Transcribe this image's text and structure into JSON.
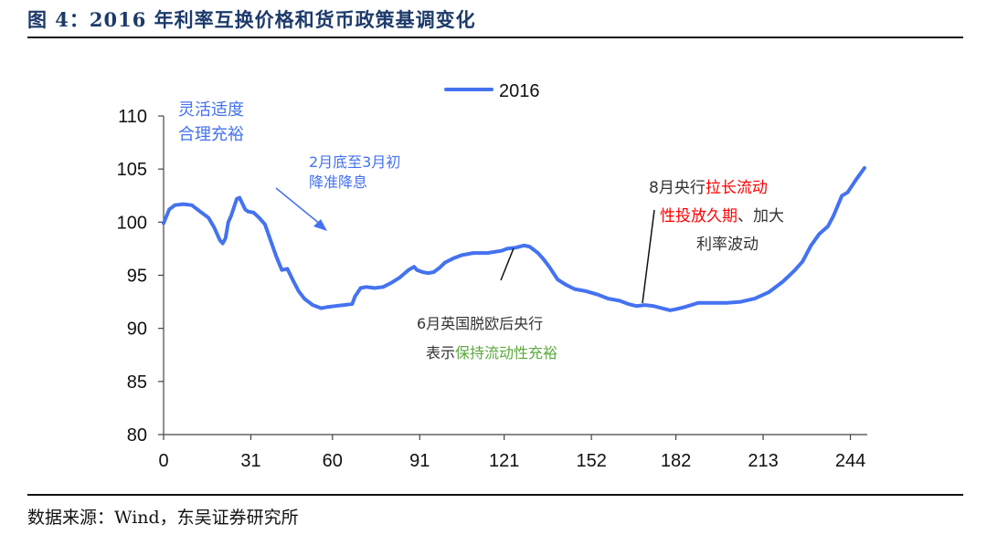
{
  "figure": {
    "title": "图 4：2016 年利率互换价格和货币政策基调变化",
    "source": "数据来源：Wind，东吴证券研究所"
  },
  "colors": {
    "line": "#4472F0",
    "annotation_blue": "#4472F0",
    "annotation_red": "#FF0000",
    "annotation_green": "#5AAA3C",
    "annotation_dark": "#333333",
    "title": "#1D3A6B"
  },
  "chart_data": {
    "type": "line",
    "title": "",
    "xlabel": "",
    "ylabel": "",
    "xlim": [
      0,
      250
    ],
    "ylim": [
      80,
      110
    ],
    "x_ticks": [
      0,
      31,
      60,
      91,
      121,
      152,
      182,
      213,
      244
    ],
    "y_ticks": [
      80,
      85,
      90,
      95,
      100,
      105,
      110
    ],
    "grid": false,
    "legend_position": "top-center",
    "series": [
      {
        "name": "2016",
        "x": [
          0,
          2,
          4,
          7,
          10,
          13,
          16,
          18,
          20,
          21,
          22,
          23,
          24,
          26,
          27,
          29,
          30,
          32,
          34,
          36,
          38,
          40,
          42,
          44,
          46,
          48,
          50,
          53,
          56,
          58,
          61,
          64,
          67,
          68,
          70,
          72,
          75,
          78,
          81,
          84,
          87,
          89,
          90,
          92,
          94,
          96,
          98,
          100,
          103,
          106,
          110,
          115,
          120,
          122,
          125,
          128,
          130,
          131,
          133,
          135,
          137,
          140,
          143,
          146,
          150,
          154,
          158,
          162,
          165,
          168,
          171,
          174,
          177,
          180,
          182,
          185,
          190,
          195,
          200,
          205,
          210,
          215,
          220,
          224,
          227,
          230,
          233,
          236,
          238,
          241,
          243,
          246,
          249
        ],
        "values": [
          99.9,
          101.2,
          101.6,
          101.7,
          101.6,
          101.0,
          100.4,
          99.5,
          98.3,
          98.0,
          98.5,
          100.0,
          100.6,
          102.2,
          102.3,
          101.2,
          101.0,
          100.9,
          100.4,
          99.8,
          98.3,
          96.8,
          95.5,
          95.6,
          94.5,
          93.5,
          92.8,
          92.2,
          91.9,
          92.0,
          92.1,
          92.2,
          92.3,
          93.0,
          93.8,
          93.9,
          93.8,
          93.9,
          94.3,
          94.8,
          95.5,
          95.8,
          95.5,
          95.3,
          95.2,
          95.3,
          95.7,
          96.2,
          96.6,
          96.9,
          97.1,
          97.1,
          97.3,
          97.5,
          97.6,
          97.8,
          97.7,
          97.5,
          97.1,
          96.5,
          95.8,
          94.6,
          94.1,
          93.7,
          93.5,
          93.2,
          92.8,
          92.6,
          92.3,
          92.1,
          92.2,
          92.1,
          91.9,
          91.7,
          91.8,
          92.0,
          92.4,
          92.4,
          92.4,
          92.5,
          92.8,
          93.4,
          94.4,
          95.4,
          96.3,
          97.8,
          98.9,
          99.6,
          100.6,
          102.5,
          102.8,
          104.0,
          105.1
        ]
      }
    ],
    "annotations": [
      {
        "lines": [
          "灵活适度",
          "合理充裕"
        ]
      },
      {
        "lines": [
          "2月底至3月初",
          "降准降息"
        ]
      },
      {
        "lines": [
          "8月央行",
          "拉长流动",
          "性投放久期",
          "、加大",
          "利率波动"
        ]
      },
      {
        "lines": [
          "6月英国脱欧后央行",
          "表示",
          "保持流动性充裕"
        ]
      }
    ]
  }
}
